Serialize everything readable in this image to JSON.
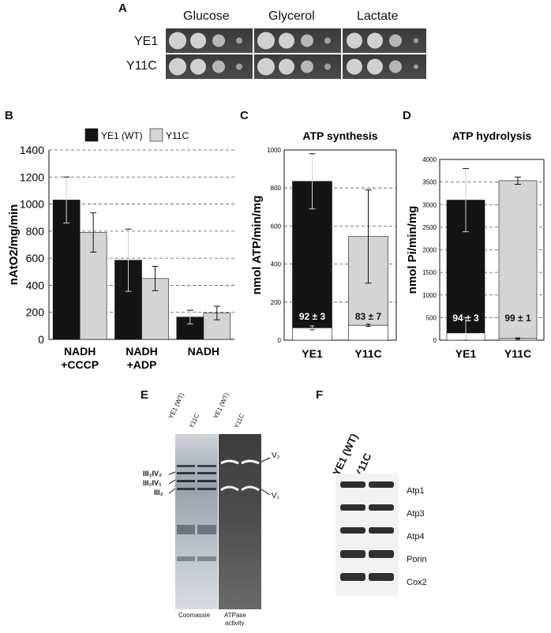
{
  "panels": {
    "A": "A",
    "B": "B",
    "C": "C",
    "D": "D",
    "E": "E",
    "F": "F"
  },
  "spot_assay": {
    "media": [
      "Glucose",
      "Glycerol",
      "Lactate"
    ],
    "strains": [
      "YE1",
      "Y11C"
    ]
  },
  "chart_data": [
    {
      "panel": "B",
      "type": "bar",
      "title": "",
      "ylabel": "nAtO2/mg/min",
      "ylim": [
        0,
        1400
      ],
      "yticks": [
        0,
        200,
        400,
        600,
        800,
        1000,
        1200,
        1400
      ],
      "grid": "dashed-horizontal",
      "legend_position": "top",
      "categories": [
        [
          "NADH",
          "+CCCP"
        ],
        [
          "NADH",
          "+ADP"
        ],
        [
          "NADH"
        ]
      ],
      "series": [
        {
          "name": "YE1 (WT)",
          "color": "#141414",
          "values": [
            1030,
            585,
            165
          ],
          "errors": [
            170,
            230,
            50
          ]
        },
        {
          "name": "Y11C",
          "color": "#d4d4d4",
          "values": [
            790,
            450,
            195
          ],
          "errors": [
            145,
            90,
            50
          ]
        }
      ]
    },
    {
      "panel": "C",
      "type": "bar",
      "title": "ATP synthesis",
      "ylabel": "nmol ATP/min/mg",
      "ylim": [
        0,
        1000
      ],
      "yticks": [
        0,
        200,
        400,
        600,
        800,
        1000
      ],
      "grid": "dashed-horizontal",
      "categories": [
        "YE1",
        "Y11C"
      ],
      "colors": [
        "#141414",
        "#d4d4d4"
      ],
      "values": [
        835,
        545
      ],
      "errors": [
        145,
        245
      ],
      "inner_values": [
        65,
        78
      ],
      "inner_errors": [
        10,
        6
      ],
      "inner_labels": [
        "92 ± 3",
        "83 ± 7"
      ]
    },
    {
      "panel": "D",
      "type": "bar",
      "title": "ATP hydrolysis",
      "ylabel": "nmol Pi/min/mg",
      "ylim": [
        0,
        4000
      ],
      "yticks": [
        0,
        500,
        1000,
        1500,
        2000,
        2500,
        3000,
        3500,
        4000
      ],
      "grid": "dashed-horizontal",
      "categories": [
        "YE1",
        "Y11C"
      ],
      "colors": [
        "#141414",
        "#d4d4d4"
      ],
      "values": [
        3100,
        3530
      ],
      "errors": [
        700,
        80
      ],
      "inner_values": [
        160,
        35
      ],
      "inner_errors": [
        340,
        15
      ],
      "inner_labels": [
        "94 ± 3",
        "99 ± 1"
      ]
    }
  ],
  "gel_E": {
    "lanes": [
      "YE1 (WT)",
      "Y11C",
      "YE1 (WT)",
      "Y11C"
    ],
    "left_labels": [
      "III₂IV₂",
      "III₂IV₁",
      "III₂"
    ],
    "right_labels": [
      "V₂",
      "V₁"
    ],
    "captions": [
      "Coomassie",
      "ATPase",
      "activity"
    ]
  },
  "blot_F": {
    "lanes": [
      "YE1 (WT)",
      "Y11C"
    ],
    "proteins": [
      "Atp1",
      "Atp3",
      "Atp4",
      "Porin",
      "Cox2"
    ]
  }
}
